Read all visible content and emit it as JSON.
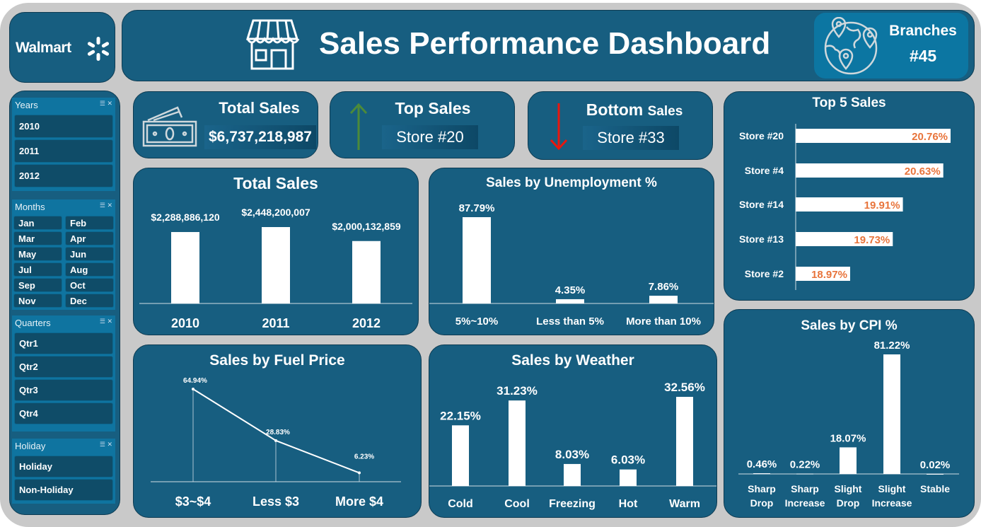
{
  "brand": {
    "logo": "Walmart"
  },
  "header": {
    "title": "Sales Performance Dashboard",
    "branches_label": "Branches",
    "branches_value": "#45"
  },
  "slicers": {
    "years": {
      "title": "Years",
      "items": [
        "2010",
        "2011",
        "2012"
      ]
    },
    "months": {
      "title": "Months",
      "items": [
        "Jan",
        "Feb",
        "Mar",
        "Apr",
        "May",
        "Jun",
        "Jul",
        "Aug",
        "Sep",
        "Oct",
        "Nov",
        "Dec"
      ]
    },
    "quarters": {
      "title": "Quarters",
      "items": [
        "Qtr1",
        "Qtr2",
        "Qtr3",
        "Qtr4"
      ]
    },
    "holiday": {
      "title": "Holiday",
      "items": [
        "Holiday",
        "Non-Holiday"
      ]
    }
  },
  "kpis": {
    "total": {
      "label": "Total Sales",
      "value": "$6,737,218,987"
    },
    "top": {
      "label": "Top Sales",
      "value": "Store #20"
    },
    "bottom": {
      "label_a": "Bottom",
      "label_b": "Sales",
      "value": "Store #33"
    }
  },
  "colors": {
    "panel": "#175e80",
    "accent_orange": "#e8743b",
    "up": "#4c8a3a",
    "down": "#e8170e"
  },
  "chart_data": [
    {
      "id": "total",
      "type": "bar",
      "title": "Total Sales",
      "categories": [
        "2010",
        "2011",
        "2012"
      ],
      "values": [
        2288886120,
        2448200007,
        2000132859
      ],
      "labels": [
        "$2,288,886,120",
        "$2,448,200,007",
        "$2,000,132,859"
      ]
    },
    {
      "id": "unemp",
      "type": "bar",
      "title": "Sales by Unemployment %",
      "categories": [
        "5%~10%",
        "Less than 5%",
        "More than 10%"
      ],
      "values": [
        87.79,
        4.35,
        7.86
      ],
      "labels": [
        "87.79%",
        "4.35%",
        "7.86%"
      ]
    },
    {
      "id": "fuel",
      "type": "line",
      "title": "Sales by Fuel Price",
      "categories": [
        "$3~$4",
        "Less $3",
        "More $4"
      ],
      "values": [
        64.94,
        28.83,
        6.23
      ],
      "labels": [
        "64.94%",
        "28.83%",
        "6.23%"
      ]
    },
    {
      "id": "weather",
      "type": "bar",
      "title": "Sales by Weather",
      "categories": [
        "Cold",
        "Cool",
        "Freezing",
        "Hot",
        "Warm"
      ],
      "values": [
        22.15,
        31.23,
        8.03,
        6.03,
        32.56
      ],
      "labels": [
        "22.15%",
        "31.23%",
        "8.03%",
        "6.03%",
        "32.56%"
      ]
    },
    {
      "id": "top5",
      "type": "bar",
      "orientation": "horizontal",
      "title": "Top 5 Sales",
      "categories": [
        "Store #20",
        "Store #4",
        "Store #14",
        "Store #13",
        "Store #2"
      ],
      "values": [
        20.76,
        20.63,
        19.91,
        19.73,
        18.97
      ],
      "labels": [
        "20.76%",
        "20.63%",
        "19.91%",
        "19.73%",
        "18.97%"
      ],
      "xlim": [
        18,
        21
      ]
    },
    {
      "id": "cpi",
      "type": "bar",
      "title": "Sales by CPI %",
      "categories": [
        "Sharp Drop",
        "Sharp Increase",
        "Slight Drop",
        "Slight Increase",
        "Stable"
      ],
      "values": [
        0.46,
        0.22,
        18.07,
        81.22,
        0.02
      ],
      "labels": [
        "0.46%",
        "0.22%",
        "18.07%",
        "81.22%",
        "0.02%"
      ]
    }
  ]
}
